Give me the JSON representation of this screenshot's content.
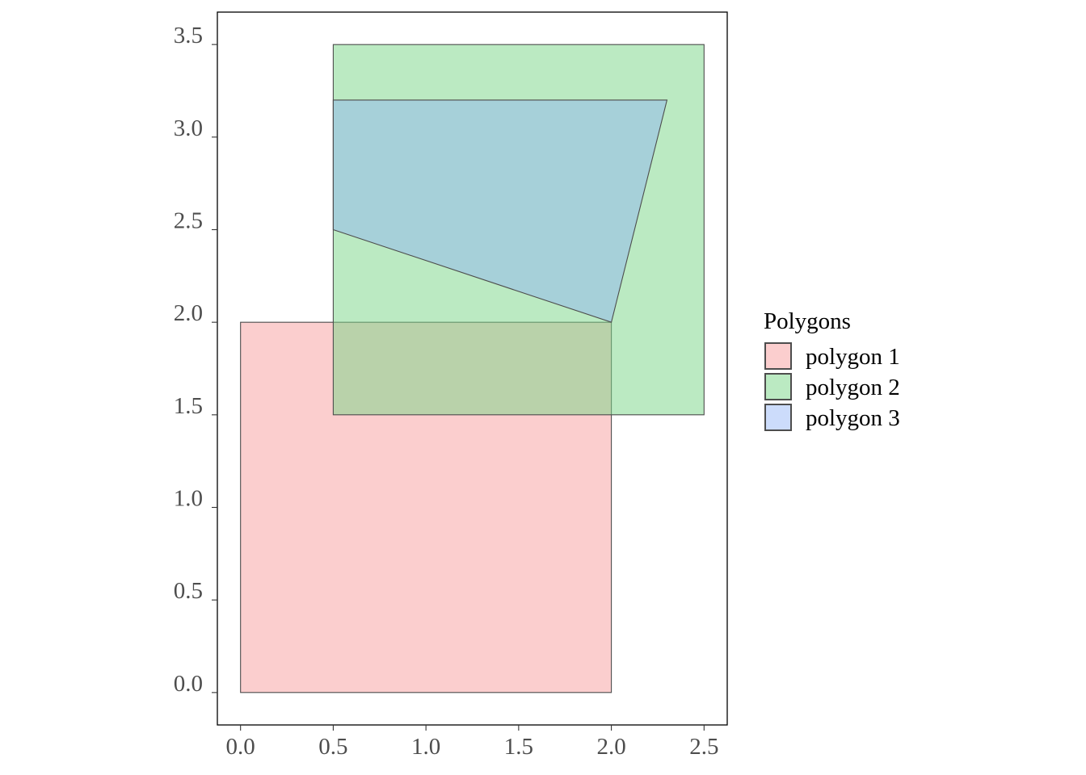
{
  "chart_data": {
    "type": "polygon",
    "xlim": [
      -0.125,
      2.625
    ],
    "ylim": [
      -0.175,
      3.675
    ],
    "x_ticks": [
      0.0,
      0.5,
      1.0,
      1.5,
      2.0,
      2.5
    ],
    "x_tick_labels": [
      "0.0",
      "0.5",
      "1.0",
      "1.5",
      "2.0",
      "2.5"
    ],
    "y_ticks": [
      0.0,
      0.5,
      1.0,
      1.5,
      2.0,
      2.5,
      3.0,
      3.5
    ],
    "y_tick_labels": [
      "0.0",
      "0.5",
      "1.0",
      "1.5",
      "2.0",
      "2.5",
      "3.0",
      "3.5"
    ],
    "grid": false,
    "legend": {
      "title": "Polygons",
      "placement": "right",
      "entries": [
        "polygon 1",
        "polygon 2",
        "polygon 3"
      ]
    },
    "series": [
      {
        "name": "polygon 1",
        "color": "#f8a5a5",
        "opacity": 0.55,
        "points": [
          [
            0,
            0
          ],
          [
            2,
            0
          ],
          [
            2,
            2
          ],
          [
            0,
            2
          ]
        ]
      },
      {
        "name": "polygon 2",
        "color": "#7dd68a",
        "opacity": 0.52,
        "points": [
          [
            0.5,
            1.5
          ],
          [
            2.5,
            1.5
          ],
          [
            2.5,
            3.5
          ],
          [
            0.5,
            3.5
          ]
        ]
      },
      {
        "name": "polygon 3",
        "color": "#8fb1f6",
        "opacity": 0.45,
        "points": [
          [
            0.5,
            2.5
          ],
          [
            2,
            2
          ],
          [
            2.3,
            3.2
          ],
          [
            0.5,
            3.2
          ]
        ]
      }
    ],
    "outline_color": "#4d4d4d",
    "axis_color": "#000000"
  }
}
